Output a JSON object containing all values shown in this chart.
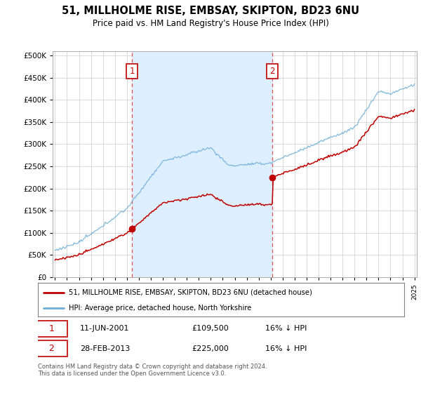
{
  "title": "51, MILLHOLME RISE, EMBSAY, SKIPTON, BD23 6NU",
  "subtitle": "Price paid vs. HM Land Registry's House Price Index (HPI)",
  "legend_entry1": "51, MILLHOLME RISE, EMBSAY, SKIPTON, BD23 6NU (detached house)",
  "legend_entry2": "HPI: Average price, detached house, North Yorkshire",
  "annotation1_date": "11-JUN-2001",
  "annotation1_price": "£109,500",
  "annotation1_hpi": "16% ↓ HPI",
  "annotation2_date": "28-FEB-2013",
  "annotation2_price": "£225,000",
  "annotation2_hpi": "16% ↓ HPI",
  "footer": "Contains HM Land Registry data © Crown copyright and database right 2024.\nThis data is licensed under the Open Government Licence v3.0.",
  "hpi_color": "#6baed6",
  "price_color": "#c00000",
  "vline_color": "#e05050",
  "shade_color": "#ddeeff",
  "annotation_box_color": "#c00000",
  "ylim": [
    0,
    510000
  ],
  "yticks": [
    0,
    50000,
    100000,
    150000,
    200000,
    250000,
    300000,
    350000,
    400000,
    450000,
    500000
  ],
  "xstart_year": 1995,
  "xend_year": 2025,
  "t1": 2001.44,
  "t2": 2013.15,
  "price1": 109500,
  "price2": 225000
}
